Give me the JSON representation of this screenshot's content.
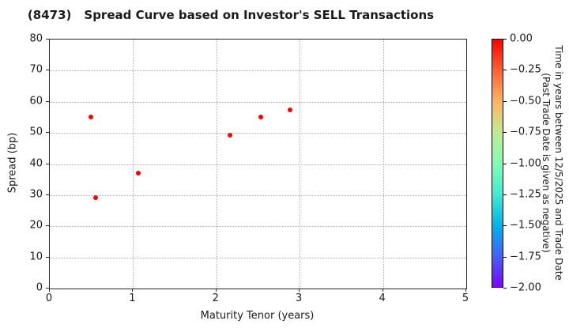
{
  "header": {
    "code": "(8473)",
    "text": "Spread Curve based on Investor's SELL Transactions"
  },
  "chart_data": {
    "type": "scatter",
    "title": "(8473)  Spread Curve based on Investor's SELL Transactions",
    "xlabel": "Maturity Tenor (years)",
    "ylabel": "Spread (bp)",
    "xlim": [
      0,
      5
    ],
    "ylim": [
      0,
      80
    ],
    "xticks": [
      0,
      1,
      2,
      3,
      4,
      5
    ],
    "yticks": [
      0,
      10,
      20,
      30,
      40,
      50,
      60,
      70,
      80
    ],
    "grid": true,
    "grid_style": "dotted",
    "legend_position": "none",
    "point_color": "#ff0000",
    "points": [
      {
        "x": 0.49,
        "y": 55.2,
        "color_value": 0.0
      },
      {
        "x": 0.55,
        "y": 29.2,
        "color_value": 0.0
      },
      {
        "x": 1.06,
        "y": 37.0,
        "color_value": 0.0
      },
      {
        "x": 2.16,
        "y": 49.3,
        "color_value": 0.0
      },
      {
        "x": 2.53,
        "y": 55.2,
        "color_value": 0.0
      },
      {
        "x": 2.88,
        "y": 57.3,
        "color_value": 0.0
      }
    ]
  },
  "colorbar": {
    "tick_labels": [
      "0.00",
      "−0.25",
      "−0.50",
      "−0.75",
      "−1.00",
      "−1.25",
      "−1.50",
      "−1.75",
      "−2.00"
    ],
    "range_top": 0.0,
    "range_bottom": -2.0,
    "label_line1": "Time in years between 12/5/2025 and Trade Date",
    "label_line2": "(Past Trade Date is given as negative)",
    "gradient_stops": [
      "#ff0000",
      "#ff6232",
      "#ffb462",
      "#bfec8e",
      "#80ffb4",
      "#40ecd4",
      "#00b4ec",
      "#4062fa",
      "#8000ff"
    ]
  },
  "colors": {
    "text": "#1a1a1a",
    "spine": "#262626",
    "grid": "#aaaaaa",
    "background": "#ffffff"
  }
}
